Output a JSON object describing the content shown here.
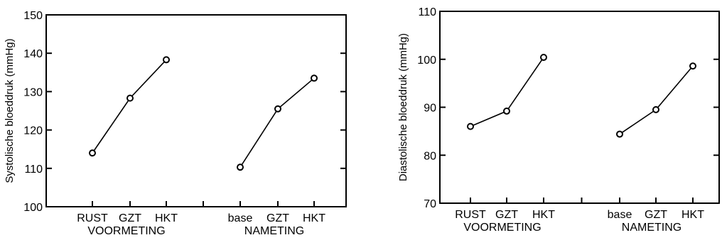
{
  "chart_data": [
    {
      "type": "line",
      "ylabel": "Systolische bloeddruk (mmHg)",
      "ylim": [
        100,
        150
      ],
      "yticks": [
        100,
        110,
        120,
        130,
        140,
        150
      ],
      "grid": false,
      "groups": [
        {
          "name": "VOORMETING",
          "categories": [
            "RUST",
            "GZT",
            "HKT"
          ],
          "values": [
            114,
            128.3,
            138.3
          ]
        },
        {
          "name": "NAMETING",
          "categories": [
            "base",
            "GZT",
            "HKT"
          ],
          "values": [
            110.3,
            125.5,
            133.5
          ]
        }
      ]
    },
    {
      "type": "line",
      "ylabel": "Diastolische bloeddruk (mmHg)",
      "ylim": [
        70,
        110
      ],
      "yticks": [
        70,
        80,
        90,
        100,
        110
      ],
      "grid": false,
      "groups": [
        {
          "name": "VOORMETING",
          "categories": [
            "RUST",
            "GZT",
            "HKT"
          ],
          "values": [
            86,
            89.2,
            100.4
          ]
        },
        {
          "name": "NAMETING",
          "categories": [
            "base",
            "GZT",
            "HKT"
          ],
          "values": [
            84.4,
            89.5,
            98.6
          ]
        }
      ]
    }
  ]
}
